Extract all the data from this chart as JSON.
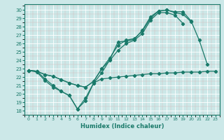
{
  "background_color": "#cce8e8",
  "line_color": "#1a7a6a",
  "grid_color": "#b8d8d8",
  "xlabel": "Humidex (Indice chaleur)",
  "xlim": [
    -0.5,
    23.5
  ],
  "ylim": [
    17.5,
    30.7
  ],
  "yticks": [
    18,
    19,
    20,
    21,
    22,
    23,
    24,
    25,
    26,
    27,
    28,
    29,
    30
  ],
  "xticks": [
    0,
    1,
    2,
    3,
    4,
    5,
    6,
    7,
    8,
    9,
    10,
    11,
    12,
    13,
    14,
    15,
    16,
    17,
    18,
    19,
    20,
    21,
    22,
    23
  ],
  "series": [
    {
      "x": [
        0,
        1,
        2,
        3,
        4,
        5,
        6,
        7,
        8,
        9,
        10,
        11,
        12,
        13,
        14,
        15,
        16,
        17,
        18,
        19,
        20,
        21,
        22
      ],
      "y": [
        22.8,
        22.7,
        21.8,
        21.0,
        20.3,
        19.8,
        18.2,
        19.2,
        21.3,
        22.5,
        24.1,
        26.2,
        26.3,
        26.5,
        27.6,
        29.2,
        29.9,
        30.0,
        29.8,
        29.8,
        28.7,
        26.4,
        23.5
      ]
    },
    {
      "x": [
        0,
        1,
        2,
        3,
        4,
        5,
        6,
        7,
        8,
        9,
        10,
        11,
        12,
        13,
        14,
        15,
        16,
        17,
        18,
        19,
        20
      ],
      "y": [
        22.8,
        22.7,
        22.3,
        22.1,
        21.7,
        21.3,
        21.0,
        20.8,
        21.5,
        23.0,
        24.3,
        25.8,
        26.4,
        26.6,
        27.5,
        29.0,
        29.9,
        30.0,
        29.7,
        29.5,
        28.6
      ]
    },
    {
      "x": [
        0,
        1,
        2,
        3,
        4,
        5,
        6,
        7,
        8,
        9,
        10,
        11,
        12,
        13,
        14,
        15,
        16,
        17,
        18,
        19
      ],
      "y": [
        22.8,
        22.7,
        22.3,
        22.1,
        21.7,
        21.3,
        21.0,
        20.8,
        21.5,
        23.0,
        24.0,
        25.2,
        26.0,
        26.4,
        27.2,
        28.8,
        29.7,
        29.7,
        29.4,
        28.4
      ]
    },
    {
      "x": [
        0,
        1,
        2,
        3,
        4,
        5,
        6,
        7,
        8,
        9,
        10,
        11,
        12,
        13,
        14,
        15,
        16,
        17,
        18,
        19,
        20,
        21,
        22,
        23
      ],
      "y": [
        22.8,
        22.6,
        21.6,
        20.8,
        20.3,
        19.8,
        18.2,
        19.5,
        21.3,
        21.8,
        21.9,
        22.0,
        22.1,
        22.2,
        22.3,
        22.4,
        22.4,
        22.5,
        22.5,
        22.6,
        22.6,
        22.6,
        22.7,
        22.7
      ]
    }
  ]
}
